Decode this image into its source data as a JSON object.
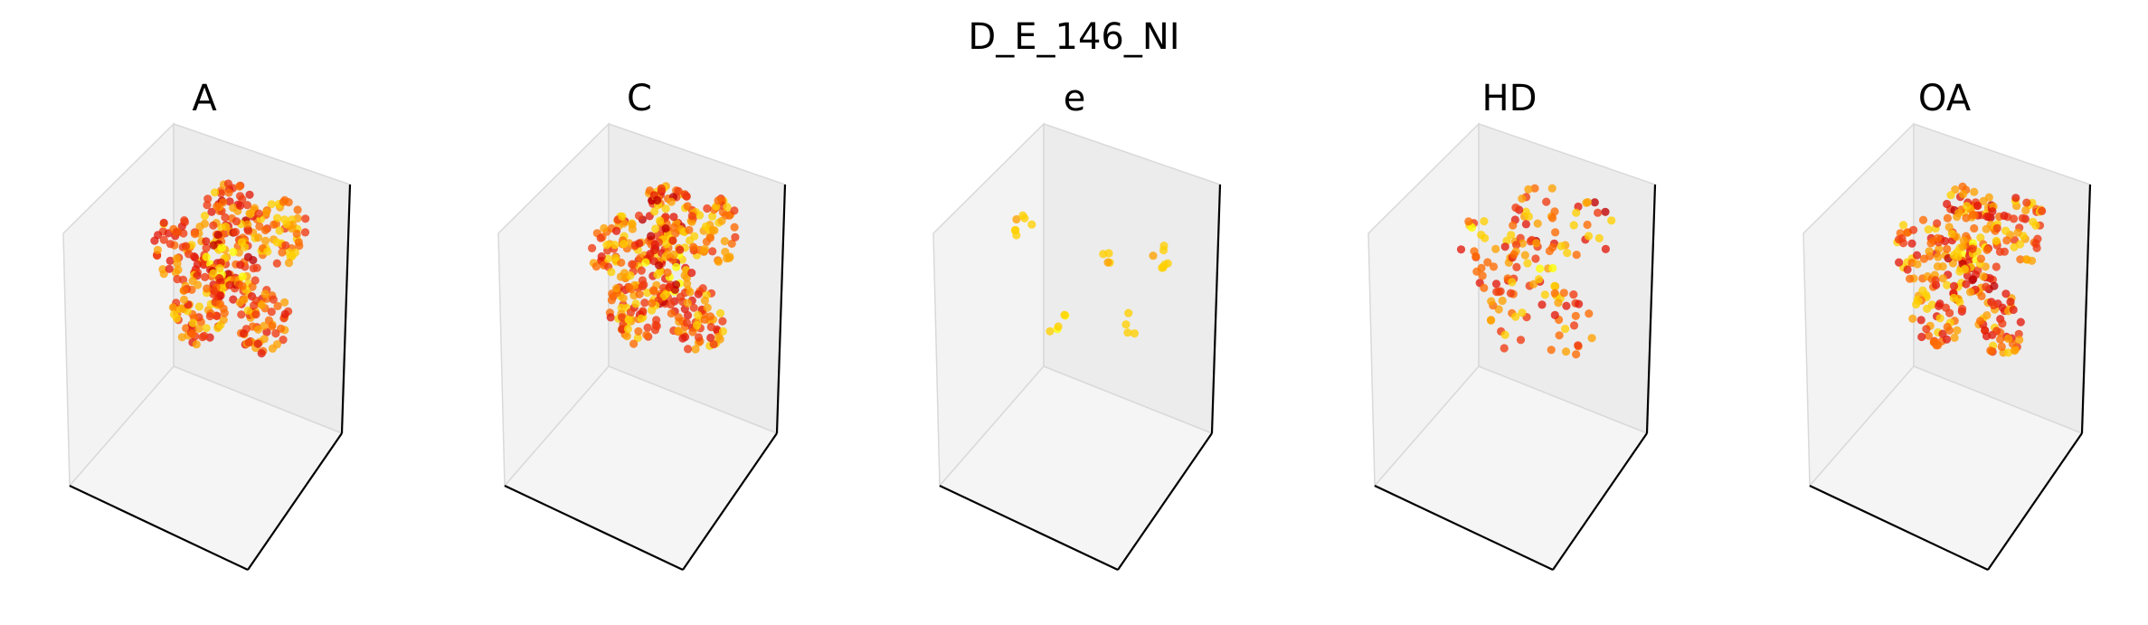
{
  "figure": {
    "title": "D_E_146_NI"
  },
  "colors": {
    "pane_back": "#ececec",
    "pane_left": "#f3f3f3",
    "pane_floor": "#f5f5f5",
    "pane_edge": "#d9d9d9",
    "axis_line": "#000000",
    "colormap": [
      "#ffff00",
      "#ffd000",
      "#ffa200",
      "#ff6a00",
      "#f03a10",
      "#e31a0c",
      "#c00000"
    ]
  },
  "chart_data": [
    {
      "type": "scatter3d",
      "title": "A",
      "grid": false,
      "tick_labels": false,
      "density": "high",
      "clusters": [
        {
          "region": "upper-left",
          "count": 60,
          "hue": [
            0.1,
            0.9
          ]
        },
        {
          "region": "upper-center",
          "count": 70,
          "hue": [
            0.0,
            0.9
          ]
        },
        {
          "region": "upper-right",
          "count": 55,
          "hue": [
            0.3,
            0.9
          ]
        },
        {
          "region": "center",
          "count": 75,
          "hue": [
            0.0,
            1.0
          ]
        },
        {
          "region": "lower-left",
          "count": 65,
          "hue": [
            0.1,
            0.9
          ]
        },
        {
          "region": "lower-right",
          "count": 60,
          "hue": [
            0.1,
            0.8
          ]
        }
      ]
    },
    {
      "type": "scatter3d",
      "title": "C",
      "grid": false,
      "tick_labels": false,
      "density": "high",
      "clusters": [
        {
          "region": "upper-left",
          "count": 60,
          "hue": [
            0.1,
            0.9
          ]
        },
        {
          "region": "upper-center",
          "count": 70,
          "hue": [
            0.0,
            0.9
          ]
        },
        {
          "region": "upper-right",
          "count": 55,
          "hue": [
            0.3,
            0.9
          ]
        },
        {
          "region": "center",
          "count": 75,
          "hue": [
            0.0,
            1.0
          ]
        },
        {
          "region": "lower-left",
          "count": 65,
          "hue": [
            0.1,
            0.9
          ]
        },
        {
          "region": "lower-right",
          "count": 60,
          "hue": [
            0.1,
            0.8
          ]
        }
      ]
    },
    {
      "type": "scatter3d",
      "title": "e",
      "grid": false,
      "tick_labels": false,
      "density": "sparse",
      "clusters": [
        {
          "region": "upper-left",
          "count": 7,
          "hue": [
            0.0,
            0.3
          ]
        },
        {
          "region": "mid-center",
          "count": 4,
          "hue": [
            0.0,
            0.2
          ]
        },
        {
          "region": "mid-right",
          "count": 7,
          "hue": [
            0.0,
            0.4
          ]
        },
        {
          "region": "lower-left",
          "count": 5,
          "hue": [
            0.0,
            0.3
          ]
        },
        {
          "region": "lower-right",
          "count": 4,
          "hue": [
            0.0,
            0.3
          ]
        }
      ]
    },
    {
      "type": "scatter3d",
      "title": "HD",
      "grid": false,
      "tick_labels": false,
      "density": "medium",
      "clusters": [
        {
          "region": "upper-left",
          "count": 22,
          "hue": [
            0.2,
            1.0
          ]
        },
        {
          "region": "upper-center",
          "count": 25,
          "hue": [
            0.0,
            0.8
          ]
        },
        {
          "region": "upper-right",
          "count": 18,
          "hue": [
            0.0,
            0.9
          ]
        },
        {
          "region": "center",
          "count": 30,
          "hue": [
            0.1,
            1.0
          ]
        },
        {
          "region": "lower-left",
          "count": 22,
          "hue": [
            0.1,
            0.9
          ]
        },
        {
          "region": "lower-right",
          "count": 20,
          "hue": [
            0.1,
            0.8
          ]
        }
      ]
    },
    {
      "type": "scatter3d",
      "title": "OA",
      "grid": false,
      "tick_labels": false,
      "density": "high",
      "clusters": [
        {
          "region": "upper-left",
          "count": 45,
          "hue": [
            0.1,
            0.9
          ]
        },
        {
          "region": "upper-center",
          "count": 60,
          "hue": [
            0.0,
            0.9
          ]
        },
        {
          "region": "upper-right",
          "count": 45,
          "hue": [
            0.2,
            0.9
          ]
        },
        {
          "region": "center",
          "count": 60,
          "hue": [
            0.0,
            1.0
          ]
        },
        {
          "region": "lower-left",
          "count": 50,
          "hue": [
            0.1,
            0.9
          ]
        },
        {
          "region": "lower-right",
          "count": 45,
          "hue": [
            0.1,
            0.8
          ]
        }
      ]
    }
  ]
}
